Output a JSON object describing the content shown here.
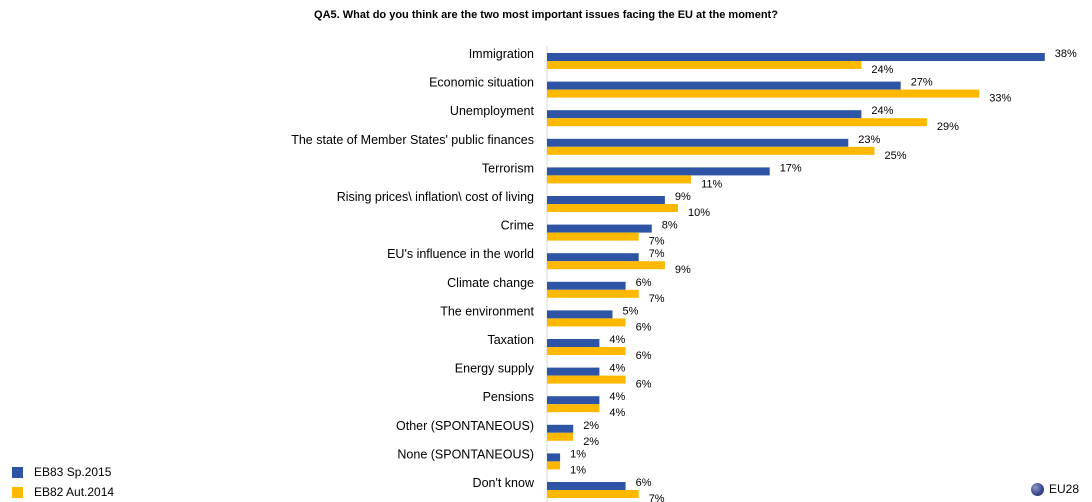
{
  "chart_data": {
    "type": "bar",
    "orientation": "horizontal",
    "title": "QA5. What do you think are the two most important issues facing the EU at the moment?",
    "categories": [
      "Immigration",
      "Economic situation",
      "Unemployment",
      "The state of Member States' public finances",
      "Terrorism",
      "Rising prices\\ inflation\\ cost of living",
      "Crime",
      "EU's influence in the world",
      "Climate change",
      "The environment",
      "Taxation",
      "Energy supply",
      "Pensions",
      "Other (SPONTANEOUS)",
      "None (SPONTANEOUS)",
      "Don't know"
    ],
    "series": [
      {
        "name": "EB83 Sp.2015",
        "color": "#2e54a6",
        "values": [
          38,
          27,
          24,
          23,
          17,
          9,
          8,
          7,
          6,
          5,
          4,
          4,
          4,
          2,
          1,
          6
        ]
      },
      {
        "name": "EB82 Aut.2014",
        "color": "#ffb800",
        "values": [
          24,
          33,
          29,
          25,
          11,
          10,
          7,
          9,
          7,
          6,
          6,
          6,
          4,
          2,
          1,
          7
        ]
      }
    ],
    "value_suffix": "%",
    "xlim": [
      0,
      40
    ],
    "grid": false,
    "legend_position": "bottom-left"
  },
  "scope_label": "EU28",
  "scope_icon": "globe-icon"
}
